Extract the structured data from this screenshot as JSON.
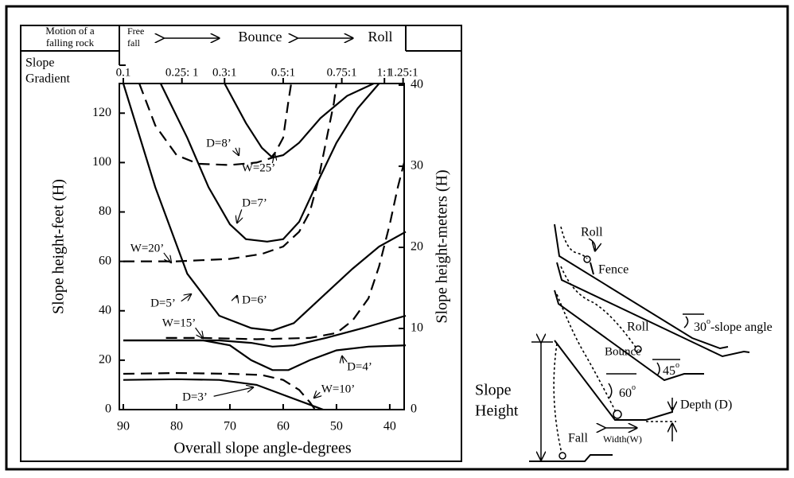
{
  "header": {
    "motion": [
      "Motion of a",
      "falling rock"
    ],
    "free_fall": [
      "Free",
      "fall"
    ],
    "bounce": "Bounce",
    "roll": "Roll"
  },
  "chart_data": {
    "type": "line",
    "x_label": "Overall slope angle-degrees",
    "y_label": "Slope height-feet (H)",
    "y2_label": "Slope height-meters (H)",
    "x2_label": [
      "Slope",
      "Gradient"
    ],
    "xlim": [
      91,
      37
    ],
    "xticks": [
      90,
      80,
      70,
      60,
      50,
      40
    ],
    "ylim": [
      0,
      132
    ],
    "yticks": [
      0,
      20,
      40,
      60,
      80,
      100,
      120
    ],
    "y2lim": [
      0,
      40.2
    ],
    "y2ticks": [
      0,
      10,
      20,
      30,
      40
    ],
    "x2ticks": [
      {
        "value": 90,
        "label": "0.1"
      },
      {
        "value": 79,
        "label": "0.25: 1"
      },
      {
        "value": 71,
        "label": "0.3:1"
      },
      {
        "value": 60,
        "label": "0.5:1"
      },
      {
        "value": 49,
        "label": "0.75:1"
      },
      {
        "value": 41,
        "label": "1:1"
      },
      {
        "value": 37.5,
        "label": "1.25:1"
      }
    ],
    "series": [
      {
        "name": "W=25’",
        "color": "#000",
        "dash": false,
        "x": [
          71,
          67,
          64,
          62,
          60,
          57,
          53,
          48,
          43
        ],
        "values": [
          132,
          116,
          106,
          102,
          103,
          108,
          118,
          127,
          132
        ]
      },
      {
        "name": "D=7’",
        "color": "#000",
        "dash": false,
        "x": [
          83,
          78,
          74,
          70,
          67,
          63,
          60,
          57,
          54,
          50,
          46,
          42
        ],
        "values": [
          132,
          110,
          90,
          75,
          69,
          68,
          69,
          76,
          90,
          108,
          122,
          132
        ]
      },
      {
        "name": "D=6’",
        "color": "#000",
        "dash": false,
        "x": [
          90,
          84,
          78,
          72,
          66,
          62,
          58,
          53,
          47,
          42,
          37
        ],
        "values": [
          132,
          90,
          55,
          38,
          33,
          32,
          35,
          45,
          57,
          66,
          72
        ]
      },
      {
        "name": "D=5’",
        "color": "#000",
        "dash": false,
        "x": [
          90,
          80,
          72,
          66,
          62,
          58,
          52,
          45,
          37
        ],
        "values": [
          28,
          28,
          28,
          27,
          25.5,
          26,
          29,
          33,
          38
        ]
      },
      {
        "name": "D=4’",
        "color": "#000",
        "dash": false,
        "x": [
          90,
          75,
          70,
          66,
          62,
          59,
          55,
          50,
          44,
          37
        ],
        "values": [
          28,
          28,
          26,
          20,
          16,
          16,
          20,
          24,
          25.5,
          26
        ]
      },
      {
        "name": "D=3’",
        "color": "#000",
        "dash": false,
        "x": [
          90,
          80,
          72,
          65,
          60,
          55,
          52.5
        ],
        "values": [
          12,
          12.3,
          12,
          10,
          6,
          2,
          0
        ]
      },
      {
        "name": "D=8’",
        "color": "#000",
        "dash": true,
        "x": [
          87,
          84,
          80,
          76,
          70,
          65,
          62,
          60,
          59,
          58.5
        ],
        "values": [
          132,
          115,
          103,
          99.5,
          99,
          100,
          102,
          110,
          125,
          132
        ]
      },
      {
        "name": "W=20’",
        "color": "#000",
        "dash": true,
        "x": [
          90,
          80,
          70,
          64,
          60,
          57,
          55,
          53.5,
          52,
          50.5,
          50
        ],
        "values": [
          60,
          60,
          61,
          63,
          66,
          72,
          80,
          92,
          108,
          124,
          132
        ]
      },
      {
        "name": "W=15’",
        "color": "#000",
        "dash": true,
        "x": [
          82,
          75,
          65,
          55,
          50,
          47,
          44,
          42,
          40,
          38.5,
          37.3
        ],
        "values": [
          29,
          29,
          28.5,
          29,
          31,
          36,
          45,
          58,
          75,
          90,
          100
        ]
      },
      {
        "name": "W=10’",
        "color": "#000",
        "dash": true,
        "x": [
          90,
          80,
          70,
          64,
          60,
          57,
          55,
          54
        ],
        "values": [
          14.5,
          14.8,
          14.5,
          14,
          12,
          8,
          3,
          0
        ]
      }
    ]
  },
  "diagram": {
    "roll_top": "Roll",
    "fence": "Fence",
    "roll_mid": "Roll",
    "angle_30": "30",
    "degree": "o",
    "slope_angle": "-slope angle",
    "bounce": "Bounce",
    "angle_45": "45",
    "angle_60": "60",
    "depth": "Depth (D)",
    "slope_height": [
      "Slope",
      "Height"
    ],
    "width": "Width(W)",
    "fall": "Fall"
  }
}
